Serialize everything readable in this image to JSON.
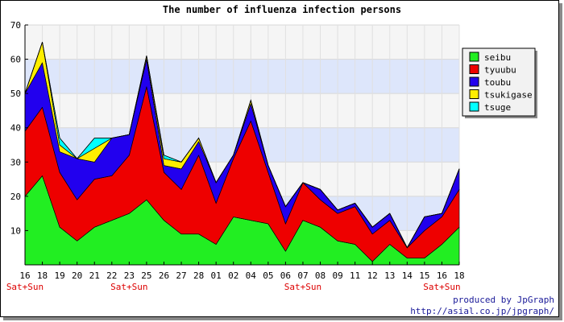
{
  "chart_data": {
    "type": "area",
    "stacked": true,
    "title": "The number of influenza infection persons",
    "xlabel": "",
    "ylabel": "",
    "ylim": [
      0,
      70
    ],
    "yticks": [
      10,
      20,
      30,
      40,
      50,
      60,
      70
    ],
    "grid": true,
    "legend_position": "right",
    "categories": [
      "16",
      "18",
      "19",
      "20",
      "21",
      "22",
      "23",
      "25",
      "26",
      "27",
      "28",
      "01",
      "02",
      "04",
      "05",
      "06",
      "07",
      "08",
      "09",
      "11",
      "12",
      "13",
      "14",
      "15",
      "16",
      "18"
    ],
    "weekend_labels": [
      {
        "index": 0,
        "text": "Sat+Sun"
      },
      {
        "index": 6,
        "text": "Sat+Sun"
      },
      {
        "index": 16,
        "text": "Sat+Sun"
      },
      {
        "index": 24,
        "text": "Sat+Sun"
      }
    ],
    "series": [
      {
        "name": "seibu",
        "color": "#22ee22",
        "values": [
          20,
          26,
          11,
          7,
          11,
          13,
          15,
          19,
          13,
          9,
          9,
          6,
          14,
          13,
          12,
          4,
          13,
          11,
          7,
          6,
          1,
          6,
          2,
          2,
          6,
          11
        ]
      },
      {
        "name": "tyuubu",
        "color": "#ee0000",
        "values": [
          19,
          20,
          16,
          12,
          14,
          13,
          17,
          33,
          14,
          13,
          23,
          12,
          17,
          29,
          15,
          8,
          11,
          8,
          8,
          11,
          8,
          7,
          3,
          8,
          8,
          11
        ]
      },
      {
        "name": "toubu",
        "color": "#2200ee",
        "values": [
          11,
          13,
          6,
          12,
          5,
          11,
          6,
          8,
          2,
          6,
          4,
          6,
          1,
          5,
          2,
          5,
          0,
          3,
          1,
          1,
          2,
          2,
          0,
          4,
          1,
          6
        ]
      },
      {
        "name": "tsukigase",
        "color": "#ffee00",
        "values": [
          0,
          6,
          2,
          0,
          4,
          0,
          0,
          1,
          2,
          2,
          1,
          0,
          0,
          1,
          0,
          0,
          0,
          0,
          0,
          0,
          0,
          0,
          0,
          0,
          0,
          0
        ]
      },
      {
        "name": "tsuge",
        "color": "#00ffff",
        "values": [
          0,
          0,
          2,
          0,
          3,
          0,
          0,
          0,
          1,
          0,
          0,
          0,
          0,
          0,
          0,
          0,
          0,
          0,
          0,
          0,
          0,
          0,
          0,
          0,
          0,
          0
        ]
      }
    ]
  },
  "footer": {
    "line1": "produced by JpGraph",
    "line2": "http://asial.co.jp/jpgraph/"
  }
}
